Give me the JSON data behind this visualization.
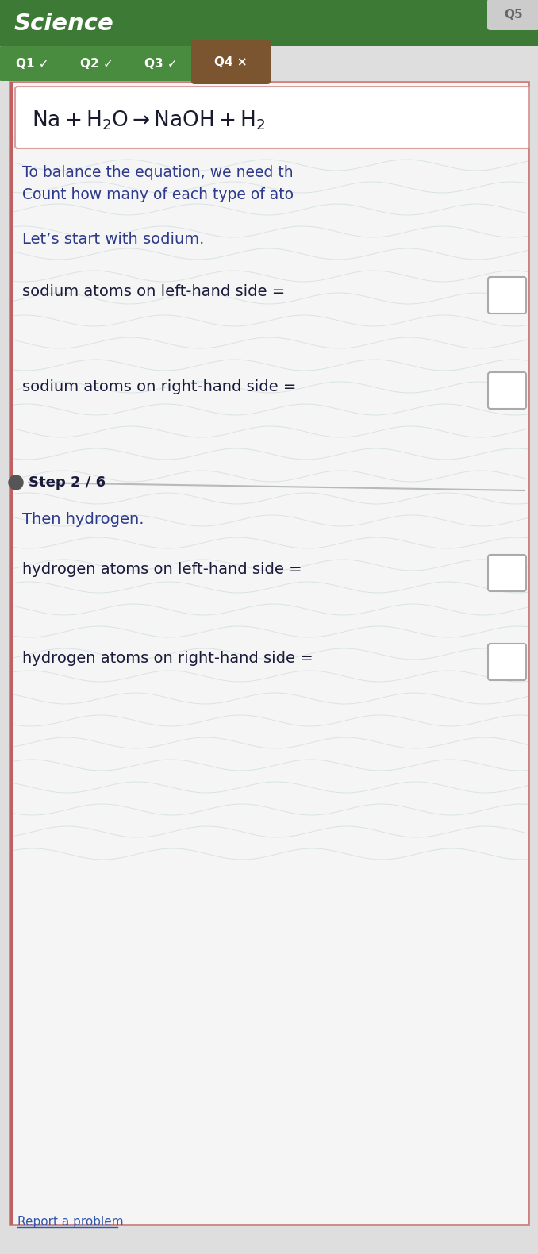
{
  "title": "Science",
  "tab_texts": [
    "Q1 ✓",
    "Q2 ✓",
    "Q3 ✓",
    "Q4 ×",
    "Q5"
  ],
  "tab_colors": [
    "#4a8c3f",
    "#4a8c3f",
    "#4a8c3f",
    "#7a5530",
    "#cccccc"
  ],
  "tab_text_colors": [
    "white",
    "white",
    "white",
    "white",
    "#666666"
  ],
  "instruction_line1": "To balance the equation, we need th",
  "instruction_line2": "Count how many of each type of ato",
  "sodium_intro": "Let’s start with sodium.",
  "sodium_left_label": "sodium atoms on left-hand side =",
  "sodium_right_label": "sodium atoms on right-hand side =",
  "step_label": "Step 2 / 6",
  "hydrogen_intro": "Then hydrogen.",
  "hydrogen_left_label": "hydrogen atoms on left-hand side =",
  "hydrogen_right_label": "hydrogen atoms on right-hand side =",
  "report_label": "Report a problem",
  "text_color": "#2d3a8c",
  "dark_text_color": "#1a1a3a",
  "watermark_color": "#b0c8c8",
  "divider_color": "#aaaaaa"
}
